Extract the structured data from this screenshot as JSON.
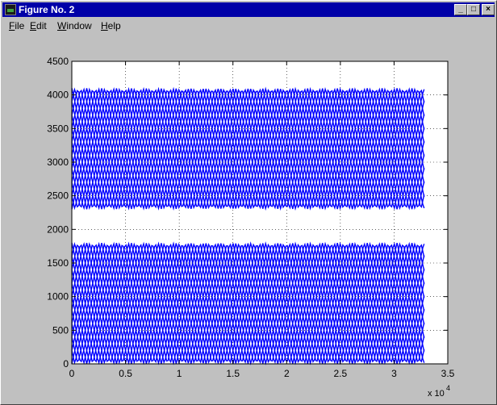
{
  "window": {
    "title": "Figure No. 2",
    "buttons": {
      "minimize": "_",
      "maximize": "□",
      "close": "×"
    }
  },
  "menu": [
    {
      "label": "File",
      "key": "F",
      "rest": "ile"
    },
    {
      "label": "Edit",
      "key": "E",
      "rest": "dit"
    },
    {
      "label": "Window",
      "key": "W",
      "rest": "indow"
    },
    {
      "label": "Help",
      "key": "H",
      "rest": "elp"
    }
  ],
  "colors": {
    "line": "#0000ff",
    "title_bar": "#0000a8",
    "background": "#c0c0c0"
  },
  "chart_data": {
    "type": "line",
    "title": "",
    "xlabel": "",
    "ylabel": "",
    "x_exponent_label": "x 10",
    "x_exponent_power": "4",
    "xlim": [
      0,
      3.5
    ],
    "ylim": [
      0,
      4500
    ],
    "xticks": [
      "0",
      "0.5",
      "1",
      "1.5",
      "2",
      "2.5",
      "3",
      "3.5"
    ],
    "yticks": [
      "0",
      "500",
      "1000",
      "1500",
      "2000",
      "2500",
      "3000",
      "3500",
      "4000",
      "4500"
    ],
    "grid": true,
    "x_data_max": 3.28,
    "zigzag_period": 0.5,
    "bands": [
      {
        "name": "lower",
        "min": 0,
        "max": 1800,
        "phases_count": 18
      },
      {
        "name": "upper",
        "min": 2300,
        "max": 4100,
        "phases_count": 18
      }
    ]
  }
}
